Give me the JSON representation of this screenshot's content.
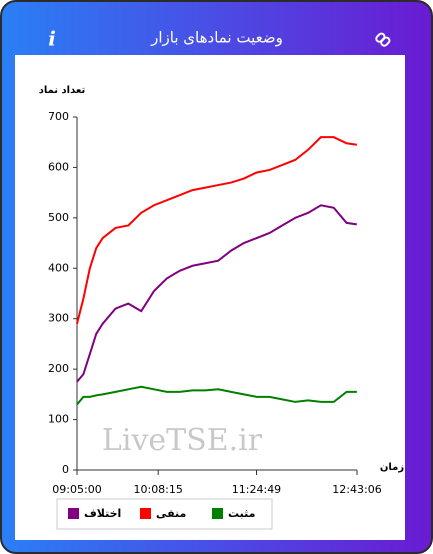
{
  "header": {
    "title": "وضعیت نمادهای بازار",
    "info_icon": "i"
  },
  "chart_data": {
    "type": "line",
    "y_label": "تعداد نماد",
    "x_label": "زمان",
    "watermark": "LiveTSE.ir",
    "x": [
      "09:05:00",
      "09:10:00",
      "09:15:00",
      "09:20:00",
      "09:25:00",
      "09:35:00",
      "09:45:00",
      "09:55:00",
      "10:05:00",
      "10:15:00",
      "10:25:00",
      "10:35:00",
      "10:45:00",
      "10:55:00",
      "11:05:00",
      "11:15:00",
      "11:25:00",
      "11:35:00",
      "11:45:00",
      "11:55:00",
      "12:05:00",
      "12:15:00",
      "12:25:00",
      "12:35:00",
      "12:43:00"
    ],
    "xlim": [
      "09:05:00",
      "12:43:06"
    ],
    "xticks": [
      "09:05:00",
      "10:08:15",
      "11:24:49",
      "12:43:06"
    ],
    "ylim": [
      0,
      700
    ],
    "yticks": [
      0,
      100,
      200,
      300,
      400,
      500,
      600,
      700
    ],
    "series": [
      {
        "name": "مثبت",
        "color": "#008000",
        "values": [
          130,
          145,
          145,
          148,
          150,
          155,
          160,
          165,
          160,
          155,
          155,
          158,
          158,
          160,
          155,
          150,
          145,
          145,
          140,
          135,
          138,
          135,
          135,
          155,
          155
        ]
      },
      {
        "name": "منفی",
        "color": "#ff0000",
        "values": [
          290,
          340,
          400,
          440,
          460,
          480,
          485,
          510,
          525,
          535,
          545,
          555,
          560,
          565,
          570,
          578,
          590,
          595,
          605,
          615,
          635,
          660,
          660,
          648,
          645
        ]
      },
      {
        "name": "اختلاف",
        "color": "#800080",
        "values": [
          175,
          190,
          230,
          270,
          290,
          320,
          330,
          315,
          355,
          380,
          395,
          405,
          410,
          415,
          435,
          450,
          460,
          470,
          485,
          500,
          510,
          525,
          520,
          490,
          487
        ]
      }
    ]
  }
}
